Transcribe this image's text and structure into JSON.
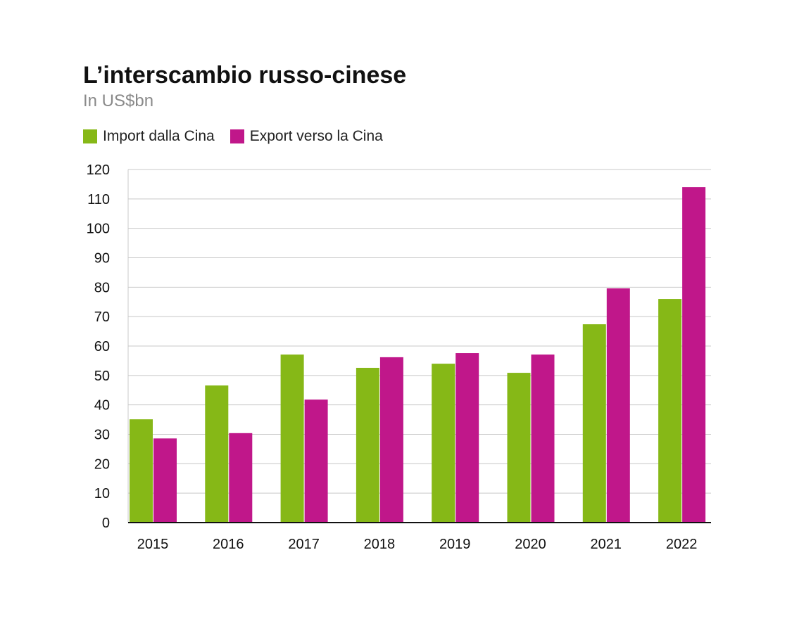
{
  "chart_data": {
    "type": "bar",
    "title": "L’interscambio russo-cinese",
    "subtitle": "In US$bn",
    "categories": [
      "2015",
      "2016",
      "2017",
      "2018",
      "2019",
      "2020",
      "2021",
      "2022"
    ],
    "series": [
      {
        "name": "Import dalla Cina",
        "color": "#86b817",
        "values": [
          35.1,
          46.6,
          57.1,
          52.6,
          54.0,
          50.9,
          67.4,
          76.0
        ]
      },
      {
        "name": "Export verso la Cina",
        "color": "#c0178a",
        "values": [
          28.6,
          30.4,
          41.8,
          56.2,
          57.6,
          57.1,
          79.6,
          114.0
        ]
      }
    ],
    "ylim": [
      0,
      120
    ],
    "yticks": [
      0,
      10,
      20,
      30,
      40,
      50,
      60,
      70,
      80,
      90,
      100,
      110,
      120
    ],
    "grid": true,
    "legend": "top-left"
  }
}
